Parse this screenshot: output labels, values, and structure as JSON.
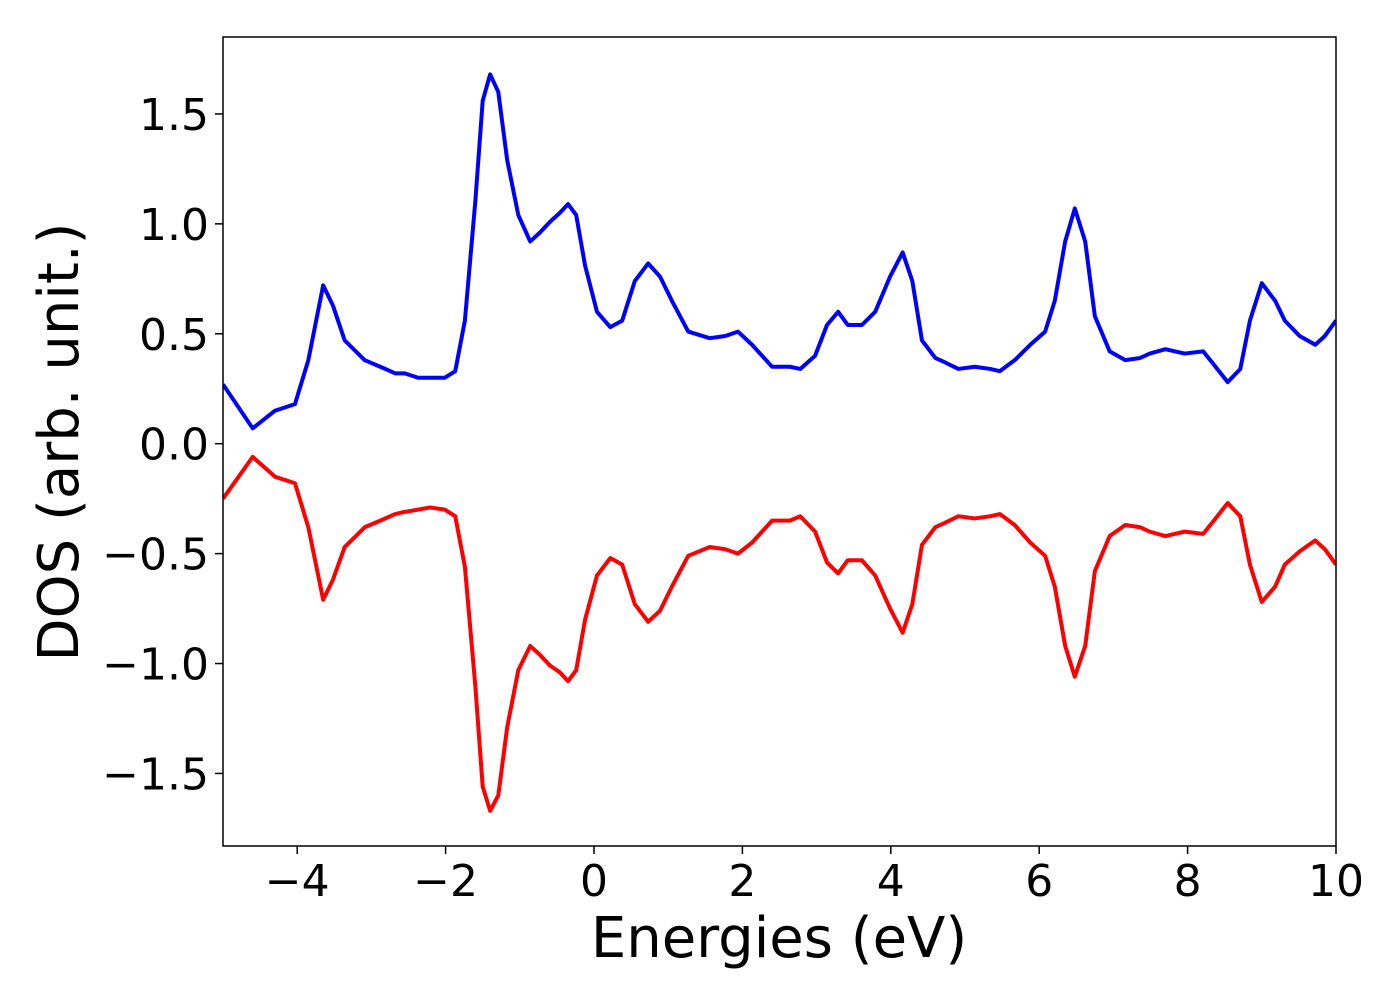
{
  "chart_data": {
    "type": "line",
    "x_label": "Energies (eV)",
    "y_label": "DOS (arb. unit.)",
    "xlim": [
      -5,
      10
    ],
    "ylim": [
      -1.83,
      1.85
    ],
    "xticks": [
      {
        "value": -4,
        "label": "−4"
      },
      {
        "value": -2,
        "label": "−2"
      },
      0,
      2,
      4,
      6,
      8,
      10
    ],
    "yticks": [
      {
        "value": -1.5,
        "label": "−1.5"
      },
      {
        "value": -1.0,
        "label": "−1.0"
      },
      {
        "value": -0.5,
        "label": "−0.5"
      },
      {
        "value": 0,
        "label": "0.0"
      },
      0.5,
      {
        "value": 1.0,
        "label": "1.0"
      },
      1.5
    ],
    "grid": false,
    "x": [
      -5,
      -4.6,
      -4.3,
      -4.03,
      -3.85,
      -3.65,
      -3.52,
      -3.36,
      -3.09,
      -2.88,
      -2.68,
      -2.55,
      -2.37,
      -2.21,
      -2.01,
      -1.87,
      -1.74,
      -1.6,
      -1.5,
      -1.4,
      -1.29,
      -1.17,
      -1.02,
      -0.86,
      -0.73,
      -0.59,
      -0.46,
      -0.35,
      -0.24,
      -0.12,
      0.04,
      0.22,
      0.38,
      0.55,
      0.73,
      0.89,
      1.05,
      1.27,
      1.56,
      1.77,
      1.94,
      2.13,
      2.4,
      2.64,
      2.78,
      2.98,
      3.14,
      3.29,
      3.42,
      3.61,
      3.79,
      3.99,
      4.16,
      4.29,
      4.42,
      4.6,
      4.73,
      4.91,
      5.13,
      5.34,
      5.47,
      5.67,
      5.88,
      6.08,
      6.21,
      6.35,
      6.48,
      6.62,
      6.75,
      6.95,
      7.16,
      7.36,
      7.49,
      7.7,
      7.96,
      8.21,
      8.33,
      8.54,
      8.71,
      8.84,
      9.0,
      9.18,
      9.31,
      9.51,
      9.72,
      9.85,
      10
    ],
    "series": [
      {
        "color": "#0000ff",
        "values": [
          0.27,
          0.07,
          0.15,
          0.18,
          0.38,
          0.72,
          0.63,
          0.47,
          0.38,
          0.35,
          0.32,
          0.32,
          0.3,
          0.3,
          0.3,
          0.33,
          0.56,
          1.1,
          1.56,
          1.68,
          1.6,
          1.29,
          1.04,
          0.92,
          0.96,
          1.01,
          1.05,
          1.09,
          1.04,
          0.81,
          0.6,
          0.53,
          0.56,
          0.74,
          0.82,
          0.76,
          0.65,
          0.51,
          0.48,
          0.49,
          0.51,
          0.45,
          0.35,
          0.35,
          0.34,
          0.4,
          0.54,
          0.6,
          0.54,
          0.54,
          0.6,
          0.76,
          0.87,
          0.74,
          0.47,
          0.39,
          0.37,
          0.34,
          0.35,
          0.34,
          0.33,
          0.38,
          0.45,
          0.51,
          0.65,
          0.92,
          1.07,
          0.92,
          0.58,
          0.42,
          0.38,
          0.39,
          0.41,
          0.43,
          0.41,
          0.42,
          0.37,
          0.28,
          0.34,
          0.56,
          0.73,
          0.65,
          0.56,
          0.49,
          0.45,
          0.49,
          0.56
        ]
      },
      {
        "color": "#ff0000",
        "values": [
          -0.25,
          -0.06,
          -0.15,
          -0.18,
          -0.38,
          -0.71,
          -0.62,
          -0.47,
          -0.38,
          -0.35,
          -0.32,
          -0.31,
          -0.3,
          -0.29,
          -0.3,
          -0.33,
          -0.56,
          -1.1,
          -1.56,
          -1.67,
          -1.6,
          -1.29,
          -1.03,
          -0.92,
          -0.96,
          -1.01,
          -1.04,
          -1.08,
          -1.03,
          -0.8,
          -0.6,
          -0.52,
          -0.55,
          -0.73,
          -0.81,
          -0.76,
          -0.65,
          -0.51,
          -0.47,
          -0.48,
          -0.5,
          -0.45,
          -0.35,
          -0.35,
          -0.33,
          -0.4,
          -0.54,
          -0.59,
          -0.53,
          -0.53,
          -0.6,
          -0.75,
          -0.86,
          -0.73,
          -0.46,
          -0.38,
          -0.36,
          -0.33,
          -0.34,
          -0.33,
          -0.32,
          -0.37,
          -0.45,
          -0.51,
          -0.65,
          -0.92,
          -1.06,
          -0.92,
          -0.58,
          -0.42,
          -0.37,
          -0.38,
          -0.4,
          -0.42,
          -0.4,
          -0.41,
          -0.36,
          -0.27,
          -0.33,
          -0.55,
          -0.72,
          -0.65,
          -0.55,
          -0.49,
          -0.44,
          -0.48,
          -0.55
        ]
      }
    ]
  }
}
